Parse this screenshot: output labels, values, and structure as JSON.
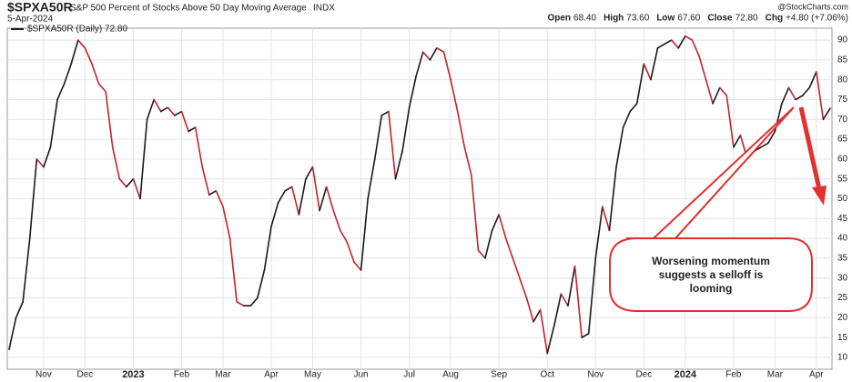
{
  "chart_data": {
    "type": "line",
    "symbol": "$SPXA50R",
    "title": "S&P 500 Percent of Stocks Above 50 Day Moving Average",
    "exchange": "INDX",
    "date": "5-Apr-2024",
    "quote": [
      {
        "name": "Open",
        "value": "68.40"
      },
      {
        "name": "High",
        "value": "73.60"
      },
      {
        "name": "Low",
        "value": "67.60"
      },
      {
        "name": "Close",
        "value": "72.80"
      },
      {
        "name": "Chg",
        "value": "+4.80 (+7.06%)"
      }
    ],
    "watermark": "@StockCharts.com",
    "annotation": [
      "Worsening momentum",
      "suggests a selloff is",
      "looming"
    ],
    "categories": [
      null,
      null,
      null,
      null,
      null,
      "Nov",
      null,
      null,
      null,
      null,
      null,
      "Dec",
      null,
      null,
      null,
      null,
      null,
      null,
      "2023",
      null,
      null,
      null,
      null,
      null,
      null,
      "Feb",
      null,
      null,
      null,
      null,
      null,
      "Mar",
      null,
      null,
      null,
      null,
      null,
      null,
      "Apr",
      null,
      null,
      null,
      null,
      null,
      "May",
      null,
      null,
      null,
      null,
      null,
      null,
      "Jun",
      null,
      null,
      null,
      null,
      null,
      null,
      "Jul",
      null,
      null,
      null,
      null,
      null,
      "Aug",
      null,
      null,
      null,
      null,
      null,
      null,
      "Sep",
      null,
      null,
      null,
      null,
      null,
      null,
      "Oct",
      null,
      null,
      null,
      null,
      null,
      null,
      "Nov",
      null,
      null,
      null,
      null,
      null,
      null,
      "Dec",
      null,
      null,
      null,
      null,
      null,
      "2024",
      null,
      null,
      null,
      null,
      null,
      null,
      "Feb",
      null,
      null,
      null,
      null,
      null,
      "Mar",
      null,
      null,
      null,
      null,
      null,
      "Apr",
      null,
      null
    ],
    "series": [
      {
        "name": "$SPXA50R (Daily) 72.80",
        "up_color": "#1a1a1a",
        "down_color": "#c8202f",
        "values": [
          12,
          20,
          24,
          40,
          60,
          58,
          63,
          75,
          79,
          84,
          90,
          88,
          84,
          79,
          77,
          63,
          55,
          53,
          55,
          50,
          70,
          75,
          72,
          73,
          71,
          72,
          67,
          68,
          58,
          51,
          52,
          48,
          40,
          24,
          23,
          23,
          25,
          32,
          43,
          49,
          52,
          53,
          46,
          55,
          58,
          47,
          53,
          47,
          42,
          39,
          34,
          32,
          50,
          60,
          71,
          72,
          55,
          62,
          73,
          81,
          87,
          85,
          88,
          87,
          80,
          72,
          63,
          56,
          37,
          35,
          42,
          46,
          40,
          35,
          30,
          25,
          19,
          22,
          11,
          18,
          26,
          23,
          33,
          15,
          16,
          35,
          48,
          42,
          58,
          68,
          72,
          74,
          84,
          80,
          88,
          89,
          90,
          88,
          91,
          90,
          86,
          80,
          74,
          78,
          76,
          63,
          66,
          60,
          62,
          63,
          64,
          67,
          74,
          78,
          75,
          76,
          78,
          82,
          70,
          72.8
        ]
      }
    ],
    "ylim": [
      7,
      93
    ],
    "yticks": [
      10,
      15,
      20,
      25,
      30,
      35,
      40,
      45,
      50,
      55,
      60,
      65,
      70,
      75,
      80,
      85,
      90
    ],
    "grid": true
  }
}
